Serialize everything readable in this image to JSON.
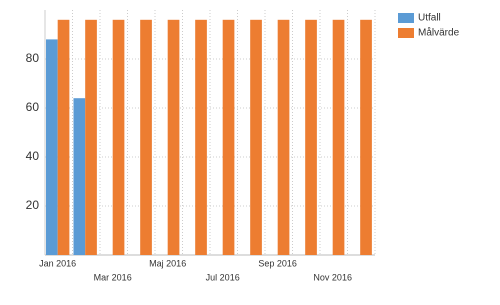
{
  "chart_data": {
    "type": "bar",
    "categories": [
      "Jan 2016",
      null,
      "Mar 2016",
      null,
      "Maj 2016",
      null,
      "Jul 2016",
      null,
      "Sep 2016",
      null,
      "Nov 2016",
      null
    ],
    "series": [
      {
        "name": "Utfall",
        "color": "#5b9bd5",
        "values": [
          88,
          64,
          null,
          null,
          null,
          null,
          null,
          null,
          null,
          null,
          null,
          null
        ]
      },
      {
        "name": "Målvärde",
        "color": "#ed7d31",
        "values": [
          96,
          96,
          96,
          96,
          96,
          96,
          96,
          96,
          96,
          96,
          96,
          96
        ]
      }
    ],
    "ylim": [
      0,
      100
    ],
    "yticks": [
      20,
      40,
      60,
      80
    ],
    "grid": true,
    "legend": "right"
  }
}
